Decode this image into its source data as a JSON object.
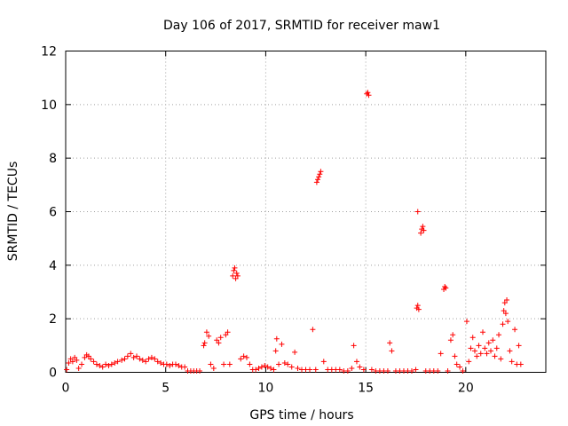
{
  "chart_data": {
    "type": "scatter",
    "title": "Day 106 of 2017, SRMTID for receiver maw1",
    "xlabel": "GPS time / hours",
    "ylabel": "SRMTID / TECUs",
    "xlim": [
      0,
      24
    ],
    "ylim": [
      0,
      12
    ],
    "x_ticks": [
      0,
      5,
      10,
      15,
      20
    ],
    "x_tick_labels": [
      "0",
      "5",
      "10",
      "15",
      "20"
    ],
    "y_ticks": [
      0,
      2,
      4,
      6,
      8,
      10,
      12
    ],
    "y_tick_labels": [
      "0",
      "2",
      "4",
      "6",
      "8",
      "10",
      "12"
    ],
    "grid": true,
    "marker": "+",
    "color": "#ff0000",
    "series": [
      {
        "name": "SRMTID",
        "points": [
          [
            0.05,
            0.1
          ],
          [
            0.15,
            0.35
          ],
          [
            0.25,
            0.5
          ],
          [
            0.35,
            0.4
          ],
          [
            0.45,
            0.55
          ],
          [
            0.55,
            0.45
          ],
          [
            0.65,
            0.15
          ],
          [
            0.8,
            0.3
          ],
          [
            0.95,
            0.55
          ],
          [
            1.05,
            0.65
          ],
          [
            1.15,
            0.6
          ],
          [
            1.25,
            0.5
          ],
          [
            1.4,
            0.4
          ],
          [
            1.55,
            0.3
          ],
          [
            1.7,
            0.25
          ],
          [
            1.85,
            0.2
          ],
          [
            2.0,
            0.3
          ],
          [
            2.15,
            0.25
          ],
          [
            2.3,
            0.3
          ],
          [
            2.45,
            0.35
          ],
          [
            2.6,
            0.4
          ],
          [
            2.8,
            0.45
          ],
          [
            2.95,
            0.5
          ],
          [
            3.1,
            0.6
          ],
          [
            3.25,
            0.7
          ],
          [
            3.4,
            0.55
          ],
          [
            3.55,
            0.6
          ],
          [
            3.7,
            0.5
          ],
          [
            3.85,
            0.45
          ],
          [
            4.0,
            0.4
          ],
          [
            4.15,
            0.5
          ],
          [
            4.3,
            0.55
          ],
          [
            4.45,
            0.5
          ],
          [
            4.6,
            0.4
          ],
          [
            4.75,
            0.35
          ],
          [
            4.9,
            0.3
          ],
          [
            5.05,
            0.3
          ],
          [
            5.2,
            0.25
          ],
          [
            5.35,
            0.3
          ],
          [
            5.5,
            0.3
          ],
          [
            5.65,
            0.25
          ],
          [
            5.8,
            0.2
          ],
          [
            5.95,
            0.2
          ],
          [
            6.1,
            0.05
          ],
          [
            6.25,
            0.05
          ],
          [
            6.4,
            0.05
          ],
          [
            6.55,
            0.05
          ],
          [
            6.7,
            0.05
          ],
          [
            6.9,
            1.0
          ],
          [
            6.95,
            1.1
          ],
          [
            7.05,
            1.5
          ],
          [
            7.15,
            1.35
          ],
          [
            7.25,
            0.3
          ],
          [
            7.4,
            0.15
          ],
          [
            7.55,
            1.2
          ],
          [
            7.65,
            1.1
          ],
          [
            7.75,
            1.3
          ],
          [
            7.9,
            0.3
          ],
          [
            8.0,
            1.4
          ],
          [
            8.1,
            1.5
          ],
          [
            8.2,
            0.3
          ],
          [
            8.35,
            3.6
          ],
          [
            8.4,
            3.8
          ],
          [
            8.45,
            3.9
          ],
          [
            8.5,
            3.5
          ],
          [
            8.55,
            3.7
          ],
          [
            8.6,
            3.6
          ],
          [
            8.75,
            0.5
          ],
          [
            8.9,
            0.6
          ],
          [
            9.05,
            0.55
          ],
          [
            9.2,
            0.3
          ],
          [
            9.35,
            0.1
          ],
          [
            9.5,
            0.1
          ],
          [
            9.65,
            0.15
          ],
          [
            9.8,
            0.2
          ],
          [
            9.95,
            0.25
          ],
          [
            10.1,
            0.2
          ],
          [
            10.25,
            0.15
          ],
          [
            10.4,
            0.1
          ],
          [
            10.5,
            0.8
          ],
          [
            10.55,
            1.25
          ],
          [
            10.65,
            0.3
          ],
          [
            10.8,
            1.05
          ],
          [
            10.95,
            0.35
          ],
          [
            11.1,
            0.3
          ],
          [
            11.3,
            0.2
          ],
          [
            11.45,
            0.75
          ],
          [
            11.6,
            0.15
          ],
          [
            11.8,
            0.1
          ],
          [
            12.0,
            0.1
          ],
          [
            12.2,
            0.1
          ],
          [
            12.35,
            1.6
          ],
          [
            12.5,
            0.1
          ],
          [
            12.55,
            7.1
          ],
          [
            12.6,
            7.2
          ],
          [
            12.65,
            7.3
          ],
          [
            12.7,
            7.4
          ],
          [
            12.75,
            7.5
          ],
          [
            12.9,
            0.4
          ],
          [
            13.1,
            0.1
          ],
          [
            13.3,
            0.1
          ],
          [
            13.5,
            0.1
          ],
          [
            13.7,
            0.1
          ],
          [
            13.9,
            0.05
          ],
          [
            14.1,
            0.05
          ],
          [
            14.3,
            0.15
          ],
          [
            14.4,
            1.0
          ],
          [
            14.55,
            0.4
          ],
          [
            14.7,
            0.2
          ],
          [
            14.9,
            0.1
          ],
          [
            15.05,
            10.4
          ],
          [
            15.1,
            10.45
          ],
          [
            15.15,
            10.35
          ],
          [
            15.3,
            0.1
          ],
          [
            15.5,
            0.05
          ],
          [
            15.7,
            0.05
          ],
          [
            15.9,
            0.05
          ],
          [
            16.1,
            0.05
          ],
          [
            16.2,
            1.1
          ],
          [
            16.3,
            0.8
          ],
          [
            16.5,
            0.05
          ],
          [
            16.7,
            0.05
          ],
          [
            16.9,
            0.05
          ],
          [
            17.1,
            0.05
          ],
          [
            17.3,
            0.05
          ],
          [
            17.5,
            0.1
          ],
          [
            17.55,
            2.4
          ],
          [
            17.6,
            2.5
          ],
          [
            17.65,
            2.35
          ],
          [
            17.6,
            6.0
          ],
          [
            17.75,
            5.2
          ],
          [
            17.8,
            5.35
          ],
          [
            17.85,
            5.45
          ],
          [
            17.9,
            5.3
          ],
          [
            18.0,
            0.05
          ],
          [
            18.2,
            0.05
          ],
          [
            18.4,
            0.05
          ],
          [
            18.6,
            0.05
          ],
          [
            18.75,
            0.7
          ],
          [
            18.9,
            3.1
          ],
          [
            18.95,
            3.2
          ],
          [
            19.0,
            3.15
          ],
          [
            19.1,
            0.05
          ],
          [
            19.25,
            1.2
          ],
          [
            19.35,
            1.4
          ],
          [
            19.45,
            0.6
          ],
          [
            19.55,
            0.3
          ],
          [
            19.7,
            0.2
          ],
          [
            19.85,
            0.05
          ],
          [
            20.05,
            1.9
          ],
          [
            20.15,
            0.4
          ],
          [
            20.25,
            0.9
          ],
          [
            20.35,
            1.3
          ],
          [
            20.45,
            0.8
          ],
          [
            20.55,
            0.6
          ],
          [
            20.65,
            1.0
          ],
          [
            20.75,
            0.7
          ],
          [
            20.85,
            1.5
          ],
          [
            20.95,
            0.9
          ],
          [
            21.05,
            0.7
          ],
          [
            21.15,
            1.1
          ],
          [
            21.25,
            0.8
          ],
          [
            21.35,
            1.2
          ],
          [
            21.45,
            0.6
          ],
          [
            21.55,
            0.9
          ],
          [
            21.65,
            1.4
          ],
          [
            21.75,
            0.5
          ],
          [
            21.85,
            1.8
          ],
          [
            21.9,
            2.3
          ],
          [
            21.95,
            2.6
          ],
          [
            22.0,
            2.2
          ],
          [
            22.05,
            2.7
          ],
          [
            22.1,
            1.9
          ],
          [
            22.2,
            0.8
          ],
          [
            22.3,
            0.4
          ],
          [
            22.45,
            1.6
          ],
          [
            22.55,
            0.3
          ],
          [
            22.65,
            1.0
          ],
          [
            22.75,
            0.3
          ]
        ]
      }
    ]
  }
}
